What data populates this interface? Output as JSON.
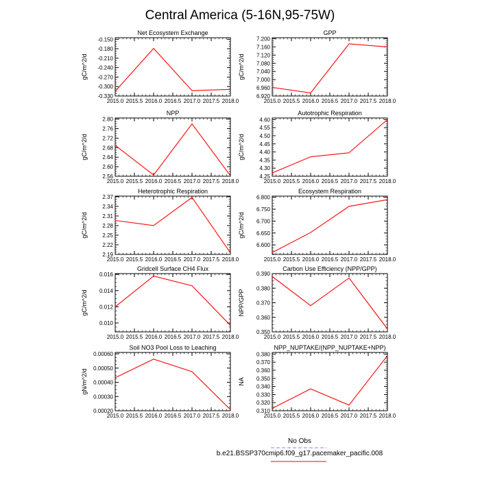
{
  "figure_title": "Central America (5-16N,95-75W)",
  "colors": {
    "model": "#ff0000",
    "obs": "#8080ff",
    "axis": "#000000"
  },
  "legend": {
    "obs_label": "No Obs",
    "model_label": "b.e21.BSSP370cmip6.f09_g17.pacemaker_pacific.008"
  },
  "chart_data": [
    {
      "type": "line",
      "title": "Net Ecosystem Exchange",
      "ylabel": "gC/m^2/d",
      "x": [
        2015,
        2016,
        2017,
        2018
      ],
      "values": [
        -0.315,
        -0.179,
        -0.313,
        -0.309
      ],
      "xlim": [
        2015,
        2018
      ],
      "ylim": [
        -0.33,
        -0.145
      ],
      "xticks": [
        "2015.0",
        "2015.5",
        "2016.0",
        "2016.5",
        "2017.0",
        "2017.5",
        "2018.0"
      ],
      "yticks": [
        "-0.150",
        "-0.180",
        "-0.210",
        "-0.240",
        "-0.270",
        "-0.300",
        "-0.330"
      ]
    },
    {
      "type": "line",
      "title": "GPP",
      "ylabel": "gC/m^2/d",
      "x": [
        2015,
        2016,
        2017,
        2018
      ],
      "values": [
        6.962,
        6.935,
        7.175,
        7.16
      ],
      "xlim": [
        2015,
        2018
      ],
      "ylim": [
        6.92,
        7.205
      ],
      "xticks": [
        "2015.0",
        "2015.5",
        "2016.0",
        "2016.5",
        "2017.0",
        "2017.5",
        "2018.0"
      ],
      "yticks": [
        "7.200",
        "7.160",
        "7.120",
        "7.080",
        "7.040",
        "7.000",
        "6.960",
        "6.920"
      ]
    },
    {
      "type": "line",
      "title": "NPP",
      "ylabel": "gC/m^2/d",
      "x": [
        2015,
        2016,
        2017,
        2018
      ],
      "values": [
        2.69,
        2.565,
        2.78,
        2.562
      ],
      "xlim": [
        2015,
        2018
      ],
      "ylim": [
        2.56,
        2.805
      ],
      "xticks": [
        "2015.0",
        "2015.5",
        "2016.0",
        "2016.5",
        "2017.0",
        "2017.5",
        "2018.0"
      ],
      "yticks": [
        "2.80",
        "2.76",
        "2.72",
        "2.68",
        "2.64",
        "2.60",
        "2.56"
      ]
    },
    {
      "type": "line",
      "title": "Autotrophic Respiration",
      "ylabel": "gC/m^2/d",
      "x": [
        2015,
        2016,
        2017,
        2018
      ],
      "values": [
        4.27,
        4.37,
        4.395,
        4.6
      ],
      "xlim": [
        2015,
        2018
      ],
      "ylim": [
        4.25,
        4.61
      ],
      "xticks": [
        "2015.0",
        "2015.5",
        "2016.0",
        "2016.5",
        "2017.0",
        "2017.5",
        "2018.0"
      ],
      "yticks": [
        "4.60",
        "4.55",
        "4.50",
        "4.45",
        "4.40",
        "4.35",
        "4.30",
        "4.25"
      ]
    },
    {
      "type": "line",
      "title": "Heterotrophic Respiration",
      "ylabel": "gC/m^2/d",
      "x": [
        2015,
        2016,
        2017,
        2018
      ],
      "values": [
        2.296,
        2.28,
        2.368,
        2.195
      ],
      "xlim": [
        2015,
        2018
      ],
      "ylim": [
        2.19,
        2.372
      ],
      "xticks": [
        "2015.0",
        "2015.5",
        "2016.0",
        "2016.5",
        "2017.0",
        "2017.5",
        "2018.0"
      ],
      "yticks": [
        "2.37",
        "2.34",
        "2.31",
        "2.28",
        "2.25",
        "2.22",
        "2.19"
      ]
    },
    {
      "type": "line",
      "title": "Ecosystem Respiration",
      "ylabel": "gC/m^2/d",
      "x": [
        2015,
        2016,
        2017,
        2018
      ],
      "values": [
        6.568,
        6.652,
        6.762,
        6.79
      ],
      "xlim": [
        2015,
        2018
      ],
      "ylim": [
        6.56,
        6.805
      ],
      "xticks": [
        "2015.0",
        "2015.5",
        "2016.0",
        "2016.5",
        "2017.0",
        "2017.5",
        "2018.0"
      ],
      "yticks": [
        "6.800",
        "6.750",
        "6.700",
        "6.650",
        "6.600"
      ]
    },
    {
      "type": "line",
      "title": "Gridcell Surface CH4 Flux",
      "ylabel": "gC/m^2/d",
      "x": [
        2015,
        2016,
        2017,
        2018
      ],
      "values": [
        0.012,
        0.0158,
        0.0146,
        0.0097
      ],
      "xlim": [
        2015,
        2018
      ],
      "ylim": [
        0.0089,
        0.0161
      ],
      "xticks": [
        "2015.0",
        "2015.5",
        "2016.0",
        "2016.5",
        "2017.0",
        "2017.5",
        "2018.0"
      ],
      "yticks": [
        "0.016",
        "0.014",
        "0.012",
        "0.010"
      ]
    },
    {
      "type": "line",
      "title": "Carbon Use Efficiency (NPP/GPP)",
      "ylabel": "NPP/GPP",
      "x": [
        2015,
        2016,
        2017,
        2018
      ],
      "values": [
        0.388,
        0.368,
        0.387,
        0.352
      ],
      "xlim": [
        2015,
        2018
      ],
      "ylim": [
        0.35,
        0.39
      ],
      "xticks": [
        "2015.0",
        "2015.5",
        "2016.0",
        "2016.5",
        "2017.0",
        "2017.5",
        "2018.0"
      ],
      "yticks": [
        "0.390",
        "0.380",
        "0.370",
        "0.360",
        "0.350"
      ]
    },
    {
      "type": "line",
      "title": "Soil NO3 Pool Loss to Leaching",
      "ylabel": "gN/m^2/d",
      "x": [
        2015,
        2016,
        2017,
        2018
      ],
      "values": [
        0.000432,
        0.000563,
        0.000475,
        0.000208
      ],
      "xlim": [
        2015,
        2018
      ],
      "ylim": [
        0.0002,
        0.00061
      ],
      "xticks": [
        "2015.0",
        "2015.5",
        "2016.0",
        "2016.5",
        "2017.0",
        "2017.5",
        "2018.0"
      ],
      "yticks": [
        "0.00060",
        "0.00050",
        "0.00040",
        "0.00030",
        "0.00020"
      ]
    },
    {
      "type": "line",
      "title": "NPP_NUPTAKE/(NPP_NUPTAKE+NPP)",
      "ylabel": "NA",
      "x": [
        2015,
        2016,
        2017,
        2018
      ],
      "values": [
        0.313,
        0.337,
        0.317,
        0.378
      ],
      "xlim": [
        2015,
        2018
      ],
      "ylim": [
        0.31,
        0.382
      ],
      "xticks": [
        "2015.0",
        "2015.5",
        "2016.0",
        "2016.5",
        "2017.0",
        "2017.5",
        "2018.0"
      ],
      "yticks": [
        "0.380",
        "0.370",
        "0.360",
        "0.350",
        "0.340",
        "0.330",
        "0.320",
        "0.310"
      ]
    }
  ]
}
